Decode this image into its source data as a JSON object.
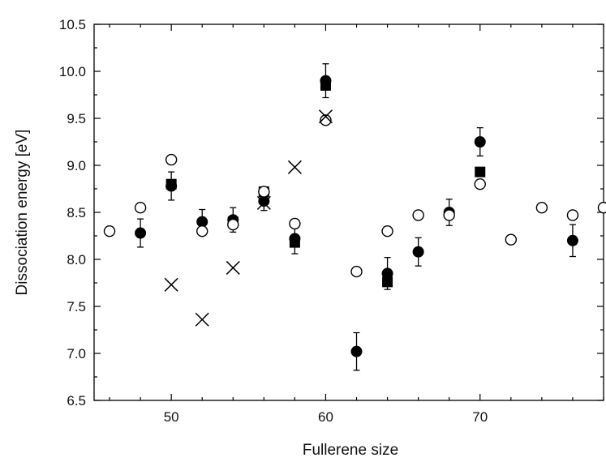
{
  "chart_data": {
    "type": "scatter",
    "title": "",
    "xlabel": "Fullerene size",
    "ylabel": "Dissociation energy [eV]",
    "xlim": [
      45,
      78
    ],
    "ylim": [
      6.5,
      10.5
    ],
    "xticks": [
      "50",
      "60",
      "70"
    ],
    "yticks": [
      "6.5",
      "7.0",
      "7.5",
      "8.0",
      "8.5",
      "9.0",
      "9.5",
      "10.0",
      "10.5"
    ],
    "grid": false,
    "legend": "none",
    "series": [
      {
        "marker": "filled-circle",
        "color": "#000000",
        "points": [
          {
            "x": 48,
            "y": 8.28,
            "err": 0.15
          },
          {
            "x": 50,
            "y": 8.78,
            "err": 0.15
          },
          {
            "x": 52,
            "y": 8.4,
            "err": 0.13
          },
          {
            "x": 54,
            "y": 8.42,
            "err": 0.13
          },
          {
            "x": 56,
            "y": 8.62,
            "err": 0.1
          },
          {
            "x": 58,
            "y": 8.22,
            "err": 0.16
          },
          {
            "x": 60,
            "y": 9.9,
            "err": 0.18
          },
          {
            "x": 62,
            "y": 7.02,
            "err": 0.2
          },
          {
            "x": 64,
            "y": 7.85,
            "err": 0.17
          },
          {
            "x": 66,
            "y": 8.08,
            "err": 0.15
          },
          {
            "x": 68,
            "y": 8.5,
            "err": 0.14
          },
          {
            "x": 70,
            "y": 9.25,
            "err": 0.15
          },
          {
            "x": 76,
            "y": 8.2,
            "err": 0.17
          }
        ]
      },
      {
        "marker": "filled-square",
        "color": "#000000",
        "points": [
          {
            "x": 50,
            "y": 8.8
          },
          {
            "x": 54,
            "y": 8.4
          },
          {
            "x": 56,
            "y": 8.72
          },
          {
            "x": 58,
            "y": 8.18
          },
          {
            "x": 60,
            "y": 9.85
          },
          {
            "x": 64,
            "y": 7.76
          },
          {
            "x": 70,
            "y": 8.93
          }
        ]
      },
      {
        "marker": "open-circle",
        "color": "#000000",
        "points": [
          {
            "x": 46,
            "y": 8.3
          },
          {
            "x": 48,
            "y": 8.55
          },
          {
            "x": 50,
            "y": 9.06
          },
          {
            "x": 52,
            "y": 8.3
          },
          {
            "x": 54,
            "y": 8.37
          },
          {
            "x": 56,
            "y": 8.72
          },
          {
            "x": 58,
            "y": 8.38
          },
          {
            "x": 60,
            "y": 9.48
          },
          {
            "x": 62,
            "y": 7.87
          },
          {
            "x": 64,
            "y": 8.3
          },
          {
            "x": 66,
            "y": 8.47
          },
          {
            "x": 68,
            "y": 8.47
          },
          {
            "x": 70,
            "y": 8.8
          },
          {
            "x": 72,
            "y": 8.21
          },
          {
            "x": 74,
            "y": 8.55
          },
          {
            "x": 76,
            "y": 8.47
          },
          {
            "x": 78,
            "y": 8.55
          }
        ]
      },
      {
        "marker": "cross",
        "color": "#000000",
        "points": [
          {
            "x": 50,
            "y": 7.73
          },
          {
            "x": 52,
            "y": 7.36
          },
          {
            "x": 54,
            "y": 7.91
          },
          {
            "x": 56,
            "y": 8.6
          },
          {
            "x": 58,
            "y": 8.98
          },
          {
            "x": 60,
            "y": 9.52
          }
        ]
      }
    ]
  }
}
